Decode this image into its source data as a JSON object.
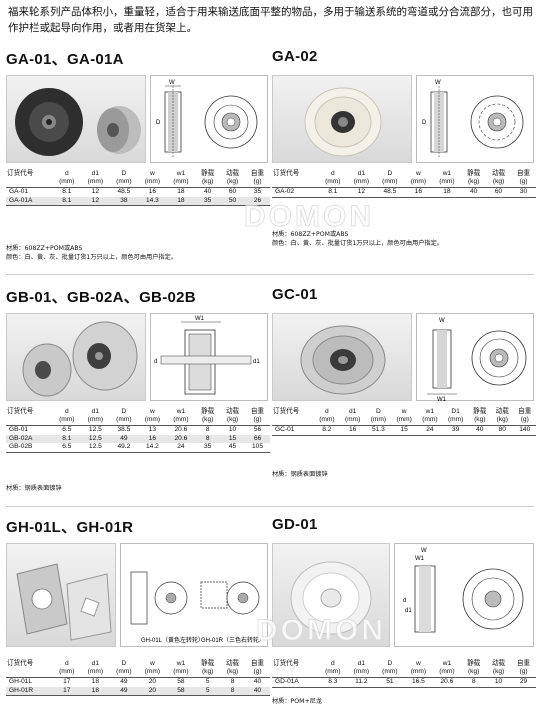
{
  "intro": "福来轮系列产品体积小，重量轻，适合于用来输送底面平整的物品，多用于输送系统的弯道或分合流部分，也可用作护栏或起导向作用，或者用在货架上。",
  "watermark": "DOMON",
  "products": [
    {
      "title": "GA-01、GA-01A",
      "headers": [
        "订货代号",
        "d",
        "d1",
        "D",
        "w",
        "w1",
        "静载",
        "动载",
        "自重"
      ],
      "units": [
        "",
        "(mm)",
        "(mm)",
        "(mm)",
        "(mm)",
        "(mm)",
        "(kg)",
        "(kg)",
        "(g)"
      ],
      "rows": [
        [
          "GA-01",
          "8.1",
          "12",
          "48.5",
          "16",
          "18",
          "40",
          "60",
          "35"
        ],
        [
          "GA-01A",
          "8.1",
          "12",
          "38",
          "14.3",
          "18",
          "35",
          "50",
          "26"
        ]
      ],
      "notes": [
        "材质：608ZZ+POM或ABS",
        "颜色：白、黄、灰、批量订货1万只以上，颜色可由用户指定。"
      ]
    },
    {
      "title": "GA-02",
      "headers": [
        "订货代号",
        "d",
        "d1",
        "D",
        "w",
        "w1",
        "静载",
        "动载",
        "自重"
      ],
      "units": [
        "",
        "(mm)",
        "(mm)",
        "(mm)",
        "(mm)",
        "(mm)",
        "(kg)",
        "(kg)",
        "(g)"
      ],
      "rows": [
        [
          "GA-02",
          "8.1",
          "12",
          "48.5",
          "16",
          "18",
          "40",
          "60",
          "30"
        ]
      ],
      "notes": [
        "材质：608ZZ+POM或ABS",
        "颜色：白、黄、灰、批量订货1万只以上，颜色可由用户指定。"
      ]
    },
    {
      "title": "GB-01、GB-02A、GB-02B",
      "headers": [
        "订货代号",
        "d",
        "d1",
        "D",
        "w",
        "w1",
        "静载",
        "动载",
        "自重"
      ],
      "units": [
        "",
        "(mm)",
        "(mm)",
        "(mm)",
        "(mm)",
        "(mm)",
        "(kg)",
        "(kg)",
        "(g)"
      ],
      "rows": [
        [
          "GB-01",
          "6.5",
          "12.5",
          "38.5",
          "13",
          "20.6",
          "8",
          "10",
          "56"
        ],
        [
          "GB-02A",
          "8.1",
          "12.5",
          "49",
          "16",
          "20.6",
          "8",
          "15",
          "66"
        ],
        [
          "GB-02B",
          "6.5",
          "12.5",
          "49.2",
          "14.2",
          "24",
          "35",
          "45",
          "105"
        ]
      ],
      "notes": [
        "材质：钢质表面镀锌"
      ]
    },
    {
      "title": "GC-01",
      "headers": [
        "订货代号",
        "d",
        "d1",
        "D",
        "w",
        "w1",
        "D1",
        "静载",
        "动载",
        "自重"
      ],
      "units": [
        "",
        "(mm)",
        "(mm)",
        "(mm)",
        "(mm)",
        "(mm)",
        "(mm)",
        "(kg)",
        "(kg)",
        "(g)"
      ],
      "rows": [
        [
          "GC-01",
          "8.2",
          "16",
          "51.3",
          "15",
          "24",
          "39",
          "40",
          "80",
          "140"
        ]
      ],
      "notes": [
        "材质：钢质表面镀锌"
      ]
    },
    {
      "title": "GH-01L、GH-01R",
      "headers": [
        "订货代号",
        "d",
        "d1",
        "D",
        "w",
        "w1",
        "静载",
        "动载",
        "自重"
      ],
      "units": [
        "",
        "(mm)",
        "(mm)",
        "(mm)",
        "(mm)",
        "(mm)",
        "(kg)",
        "(kg)",
        "(g)"
      ],
      "rows": [
        [
          "GH-01L",
          "17",
          "18",
          "49",
          "20",
          "58",
          "5",
          "8",
          "40"
        ],
        [
          "GH-01R",
          "17",
          "18",
          "49",
          "20",
          "58",
          "5",
          "8",
          "40"
        ]
      ],
      "captions": [
        "GH-01L（黄色左转轮）",
        "GH-01R（三色右转轮）"
      ],
      "notes": []
    },
    {
      "title": "GD-01",
      "headers": [
        "订货代号",
        "d",
        "d1",
        "D",
        "w",
        "w1",
        "静载",
        "动载",
        "自重"
      ],
      "units": [
        "",
        "(mm)",
        "(mm)",
        "(mm)",
        "(mm)",
        "(mm)",
        "(kg)",
        "(kg)",
        "(g)"
      ],
      "rows": [
        [
          "GD-01A",
          "8.3",
          "11.2",
          "51",
          "16.5",
          "20.6",
          "8",
          "10",
          "29"
        ]
      ],
      "notes": [
        "材质：POM+尼龙"
      ]
    }
  ],
  "dim_labels": {
    "d": "d",
    "d1": "d1",
    "D": "D",
    "w": "W",
    "w1": "W1"
  },
  "colors": {
    "text": "#111111",
    "row_alt": "#e6e6e6",
    "rule": "#555555",
    "photo_bg": "#e4e4e4"
  }
}
